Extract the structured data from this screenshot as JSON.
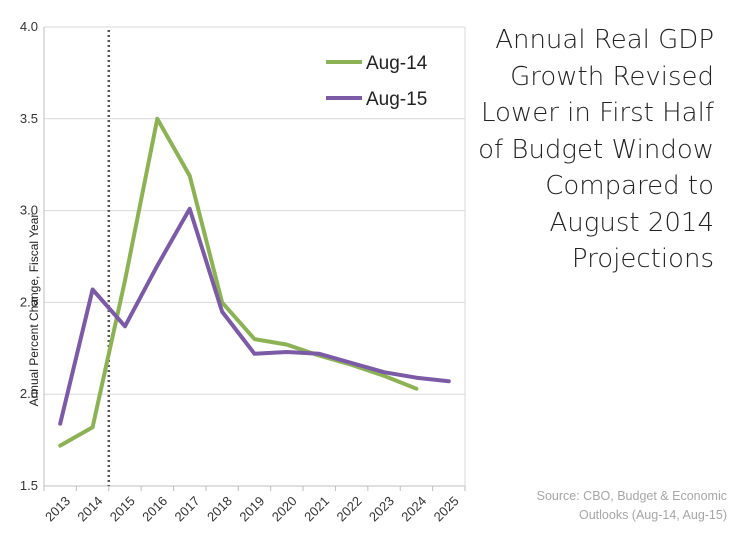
{
  "chart_data": {
    "type": "line",
    "title_lines": [
      "Annual Real GDP",
      "Growth Revised",
      "Lower in First Half",
      "of Budget Window",
      "Compared to",
      "August 2014",
      "Projections"
    ],
    "ylabel": "Annual Percent Change, Fiscal Year",
    "xlabel": "",
    "x": [
      "2013",
      "2014",
      "2015",
      "2016",
      "2017",
      "2018",
      "2019",
      "2020",
      "2021",
      "2022",
      "2023",
      "2024",
      "2025"
    ],
    "ylim": [
      1.5,
      4.0
    ],
    "yticks": [
      "1.5",
      "2.0",
      "2.5",
      "3.0",
      "3.5",
      "4.0"
    ],
    "grid": true,
    "legend_position": "top-right",
    "reference_line": {
      "between": [
        "2014",
        "2015"
      ],
      "style": "dotted"
    },
    "series": [
      {
        "name": "Aug-14",
        "color": "#8db255",
        "values": [
          1.72,
          1.82,
          2.62,
          3.5,
          3.19,
          2.5,
          2.3,
          2.27,
          2.21,
          2.16,
          2.1,
          2.03,
          null
        ]
      },
      {
        "name": "Aug-15",
        "color": "#7b5aa6",
        "values": [
          1.84,
          2.57,
          2.37,
          2.7,
          3.01,
          2.45,
          2.22,
          2.23,
          2.22,
          2.17,
          2.12,
          2.09,
          2.07
        ]
      }
    ]
  },
  "source_lines": [
    "Source: CBO, Budget & Economic",
    "Outlooks (Aug-14, Aug-15)"
  ]
}
